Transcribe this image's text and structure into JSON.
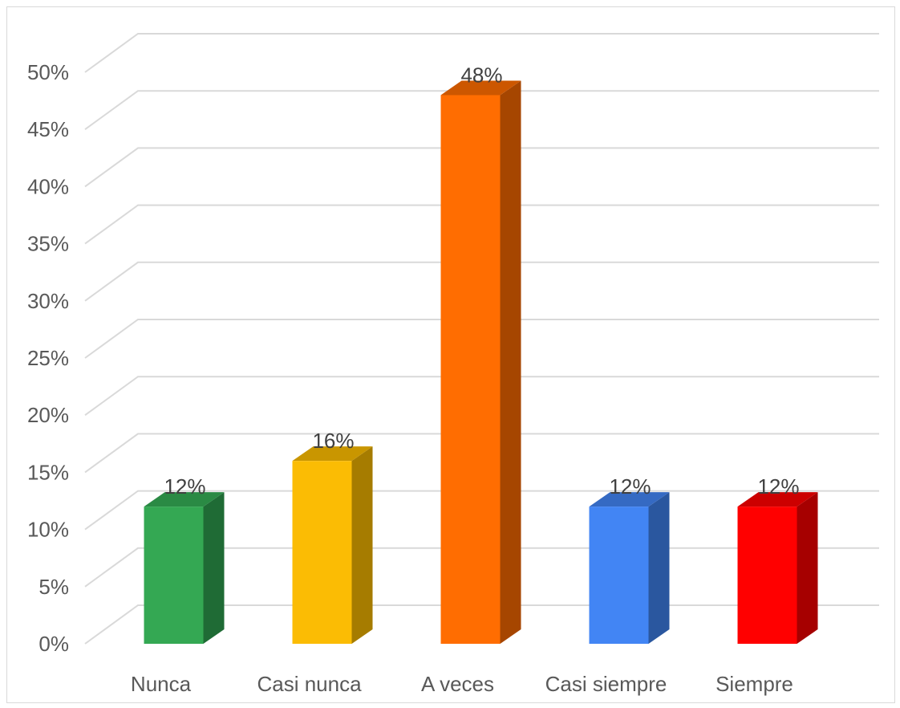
{
  "chart_data": {
    "type": "bar",
    "style": "3d-column",
    "title": "",
    "xlabel": "",
    "ylabel": "",
    "ylim": [
      0,
      50
    ],
    "y_ticks": [
      0,
      5,
      10,
      15,
      20,
      25,
      30,
      35,
      40,
      45,
      50
    ],
    "y_tick_labels": [
      "0%",
      "5%",
      "10%",
      "15%",
      "20%",
      "25%",
      "30%",
      "35%",
      "40%",
      "45%",
      "50%"
    ],
    "grid": true,
    "legend": "none",
    "categories": [
      "Nunca",
      "Casi nunca",
      "A veces",
      "Casi siempre",
      "Siempre"
    ],
    "values": [
      12,
      16,
      48,
      12,
      12
    ],
    "data_labels": [
      "12%",
      "16%",
      "48%",
      "12%",
      "12%"
    ],
    "colors": [
      {
        "front": "#34a853",
        "side": "#1f6b35",
        "top": "#2a8a44"
      },
      {
        "front": "#fbbc04",
        "side": "#a67c00",
        "top": "#c99600"
      },
      {
        "front": "#ff6d01",
        "side": "#a64600",
        "top": "#cc5700"
      },
      {
        "front": "#4285f4",
        "side": "#2a579f",
        "top": "#356ac3"
      },
      {
        "front": "#ff0000",
        "side": "#a60000",
        "top": "#cc0000"
      }
    ],
    "gridline_color": "#d9d9d9"
  }
}
